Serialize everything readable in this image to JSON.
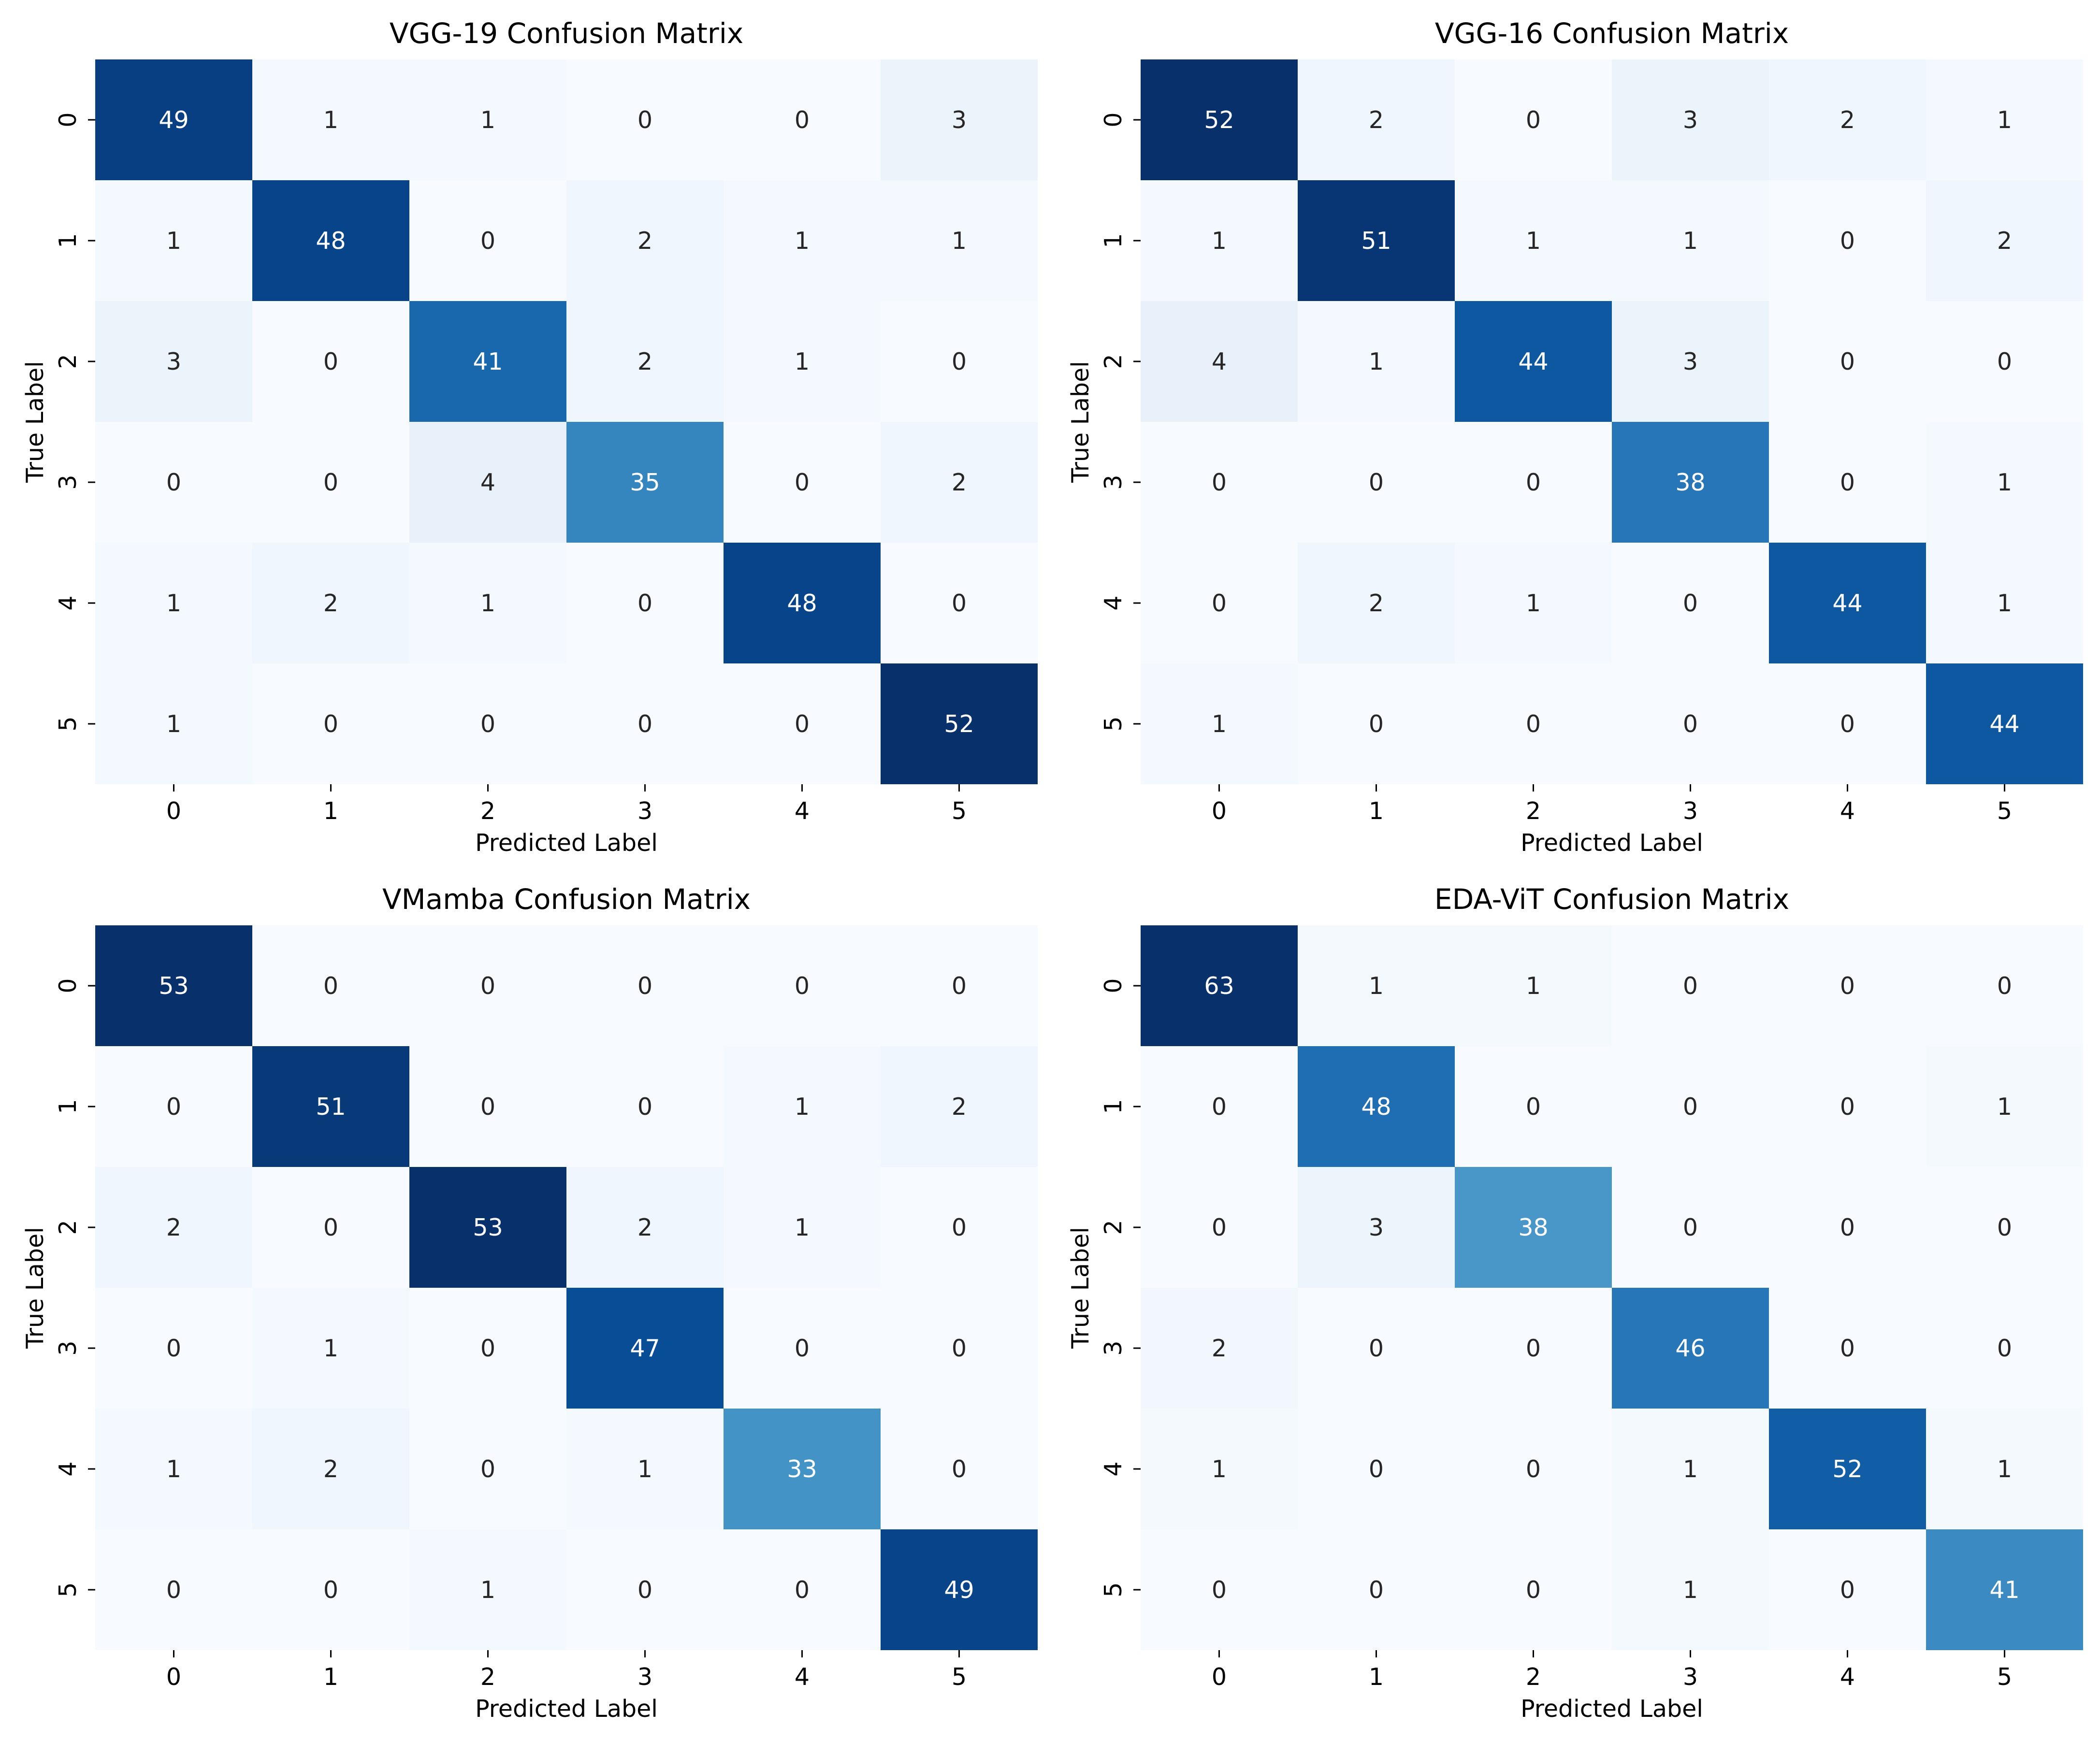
{
  "chart_data": [
    {
      "type": "heatmap",
      "title": "VGG-19 Confusion Matrix",
      "xlabel": "Predicted Label",
      "ylabel": "True Label",
      "x_ticks": [
        "0",
        "1",
        "2",
        "3",
        "4",
        "5"
      ],
      "y_ticks": [
        "0",
        "1",
        "2",
        "3",
        "4",
        "5"
      ],
      "colormap": "Blues",
      "values": [
        [
          49,
          1,
          1,
          0,
          0,
          3
        ],
        [
          1,
          48,
          0,
          2,
          1,
          1
        ],
        [
          3,
          0,
          41,
          2,
          1,
          0
        ],
        [
          0,
          0,
          4,
          35,
          0,
          2
        ],
        [
          1,
          2,
          1,
          0,
          48,
          0
        ],
        [
          1,
          0,
          0,
          0,
          0,
          52
        ]
      ]
    },
    {
      "type": "heatmap",
      "title": "VGG-16 Confusion Matrix",
      "xlabel": "Predicted Label",
      "ylabel": "True Label",
      "x_ticks": [
        "0",
        "1",
        "2",
        "3",
        "4",
        "5"
      ],
      "y_ticks": [
        "0",
        "1",
        "2",
        "3",
        "4",
        "5"
      ],
      "colormap": "Blues",
      "values": [
        [
          52,
          2,
          0,
          3,
          2,
          1
        ],
        [
          1,
          51,
          1,
          1,
          0,
          2
        ],
        [
          4,
          1,
          44,
          3,
          0,
          0
        ],
        [
          0,
          0,
          0,
          38,
          0,
          1
        ],
        [
          0,
          2,
          1,
          0,
          44,
          1
        ],
        [
          1,
          0,
          0,
          0,
          0,
          44
        ]
      ]
    },
    {
      "type": "heatmap",
      "title": "VMamba Confusion Matrix",
      "xlabel": "Predicted Label",
      "ylabel": "True Label",
      "x_ticks": [
        "0",
        "1",
        "2",
        "3",
        "4",
        "5"
      ],
      "y_ticks": [
        "0",
        "1",
        "2",
        "3",
        "4",
        "5"
      ],
      "colormap": "Blues",
      "values": [
        [
          53,
          0,
          0,
          0,
          0,
          0
        ],
        [
          0,
          51,
          0,
          0,
          1,
          2
        ],
        [
          2,
          0,
          53,
          2,
          1,
          0
        ],
        [
          0,
          1,
          0,
          47,
          0,
          0
        ],
        [
          1,
          2,
          0,
          1,
          33,
          0
        ],
        [
          0,
          0,
          1,
          0,
          0,
          49
        ]
      ]
    },
    {
      "type": "heatmap",
      "title": "EDA-ViT Confusion Matrix",
      "xlabel": "Predicted Label",
      "ylabel": "True Label",
      "x_ticks": [
        "0",
        "1",
        "2",
        "3",
        "4",
        "5"
      ],
      "y_ticks": [
        "0",
        "1",
        "2",
        "3",
        "4",
        "5"
      ],
      "colormap": "Blues",
      "values": [
        [
          63,
          1,
          1,
          0,
          0,
          0
        ],
        [
          0,
          48,
          0,
          0,
          0,
          1
        ],
        [
          0,
          3,
          38,
          0,
          0,
          0
        ],
        [
          2,
          0,
          0,
          46,
          0,
          0
        ],
        [
          1,
          0,
          0,
          1,
          52,
          1
        ],
        [
          0,
          0,
          0,
          1,
          0,
          41
        ]
      ]
    }
  ]
}
